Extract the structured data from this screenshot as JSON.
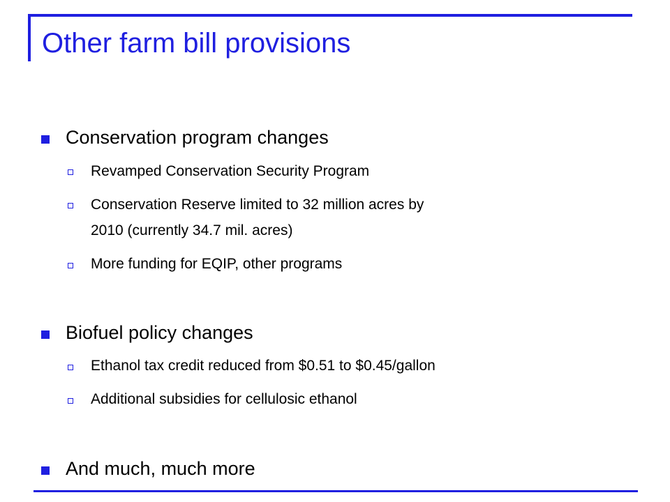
{
  "slide": {
    "title": "Other farm bill provisions",
    "colors": {
      "accent": "#1f1fe0",
      "text": "#000000"
    },
    "sections": [
      {
        "heading": "Conservation program changes",
        "items": [
          "Revamped Conservation Security Program",
          "Conservation Reserve limited to 32 million acres by",
          "2010 (currently 34.7 mil. acres)",
          "More funding for EQIP, other programs"
        ]
      },
      {
        "heading": "Biofuel policy changes",
        "items": [
          "Ethanol tax credit reduced from $0.51 to $0.45/gallon",
          "Additional subsidies for cellulosic ethanol"
        ]
      },
      {
        "heading": "And much, much more",
        "items": []
      }
    ]
  }
}
